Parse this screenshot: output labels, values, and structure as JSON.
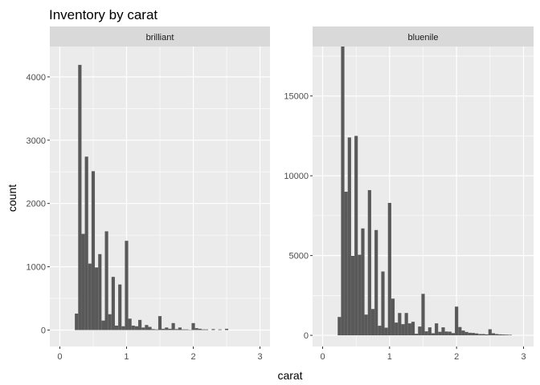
{
  "chart_data": {
    "type": "bar",
    "title": "Inventory by carat",
    "xlabel": "carat",
    "ylabel": "count",
    "grid": true,
    "xlim": [
      -0.15,
      3.15
    ],
    "bin_width": 0.05,
    "x_ticks": [
      0,
      1,
      2,
      3
    ],
    "x_tick_labels": [
      "0",
      "1",
      "2",
      "3"
    ],
    "colors": {
      "panel_bg": "#EBEBEB",
      "strip_bg": "#D9D9D9",
      "bar": "#595959",
      "grid": "#FFFFFF"
    },
    "panels": [
      {
        "name": "brilliant",
        "ylim": [
          -260,
          4480
        ],
        "y_ticks": [
          0,
          1000,
          2000,
          3000,
          4000
        ],
        "y_tick_labels": [
          "0",
          "1000",
          "2000",
          "3000",
          "4000"
        ],
        "bins": [
          [
            0.25,
            260
          ],
          [
            0.3,
            4190
          ],
          [
            0.35,
            1520
          ],
          [
            0.4,
            2740
          ],
          [
            0.45,
            1050
          ],
          [
            0.5,
            2510
          ],
          [
            0.55,
            990
          ],
          [
            0.6,
            1200
          ],
          [
            0.65,
            150
          ],
          [
            0.7,
            1560
          ],
          [
            0.75,
            250
          ],
          [
            0.8,
            840
          ],
          [
            0.85,
            70
          ],
          [
            0.9,
            720
          ],
          [
            0.95,
            60
          ],
          [
            1.0,
            1410
          ],
          [
            1.05,
            180
          ],
          [
            1.1,
            70
          ],
          [
            1.15,
            60
          ],
          [
            1.2,
            160
          ],
          [
            1.25,
            40
          ],
          [
            1.3,
            80
          ],
          [
            1.35,
            50
          ],
          [
            1.4,
            15
          ],
          [
            1.45,
            10
          ],
          [
            1.5,
            220
          ],
          [
            1.55,
            20
          ],
          [
            1.6,
            40
          ],
          [
            1.65,
            20
          ],
          [
            1.7,
            110
          ],
          [
            1.75,
            15
          ],
          [
            1.8,
            40
          ],
          [
            1.85,
            10
          ],
          [
            1.9,
            10
          ],
          [
            1.95,
            5
          ],
          [
            2.0,
            110
          ],
          [
            2.05,
            30
          ],
          [
            2.1,
            20
          ],
          [
            2.15,
            10
          ],
          [
            2.2,
            10
          ],
          [
            2.3,
            15
          ],
          [
            2.4,
            10
          ],
          [
            2.5,
            20
          ]
        ]
      },
      {
        "name": "bluenile",
        "ylim": [
          -700,
          18100
        ],
        "y_ticks": [
          0,
          5000,
          10000,
          15000
        ],
        "y_tick_labels": [
          "0",
          "5000",
          "10000",
          "15000"
        ],
        "bins": [
          [
            0.25,
            1150
          ],
          [
            0.3,
            18100
          ],
          [
            0.35,
            9000
          ],
          [
            0.4,
            12400
          ],
          [
            0.45,
            4980
          ],
          [
            0.5,
            12500
          ],
          [
            0.55,
            5050
          ],
          [
            0.6,
            6700
          ],
          [
            0.65,
            1300
          ],
          [
            0.7,
            9100
          ],
          [
            0.75,
            1650
          ],
          [
            0.8,
            6600
          ],
          [
            0.85,
            600
          ],
          [
            0.9,
            4000
          ],
          [
            0.95,
            480
          ],
          [
            1.0,
            8300
          ],
          [
            1.05,
            2300
          ],
          [
            1.1,
            800
          ],
          [
            1.15,
            1400
          ],
          [
            1.2,
            700
          ],
          [
            1.25,
            1400
          ],
          [
            1.3,
            750
          ],
          [
            1.35,
            850
          ],
          [
            1.4,
            100
          ],
          [
            1.45,
            550
          ],
          [
            1.5,
            2600
          ],
          [
            1.55,
            250
          ],
          [
            1.6,
            500
          ],
          [
            1.65,
            130
          ],
          [
            1.7,
            750
          ],
          [
            1.75,
            220
          ],
          [
            1.8,
            500
          ],
          [
            1.85,
            240
          ],
          [
            1.9,
            230
          ],
          [
            1.95,
            140
          ],
          [
            2.0,
            1800
          ],
          [
            2.05,
            520
          ],
          [
            2.1,
            300
          ],
          [
            2.15,
            210
          ],
          [
            2.2,
            160
          ],
          [
            2.25,
            150
          ],
          [
            2.3,
            120
          ],
          [
            2.35,
            80
          ],
          [
            2.4,
            80
          ],
          [
            2.45,
            60
          ],
          [
            2.5,
            380
          ],
          [
            2.55,
            130
          ],
          [
            2.6,
            80
          ],
          [
            2.65,
            60
          ],
          [
            2.7,
            50
          ],
          [
            2.75,
            40
          ],
          [
            2.8,
            30
          ]
        ]
      }
    ]
  }
}
